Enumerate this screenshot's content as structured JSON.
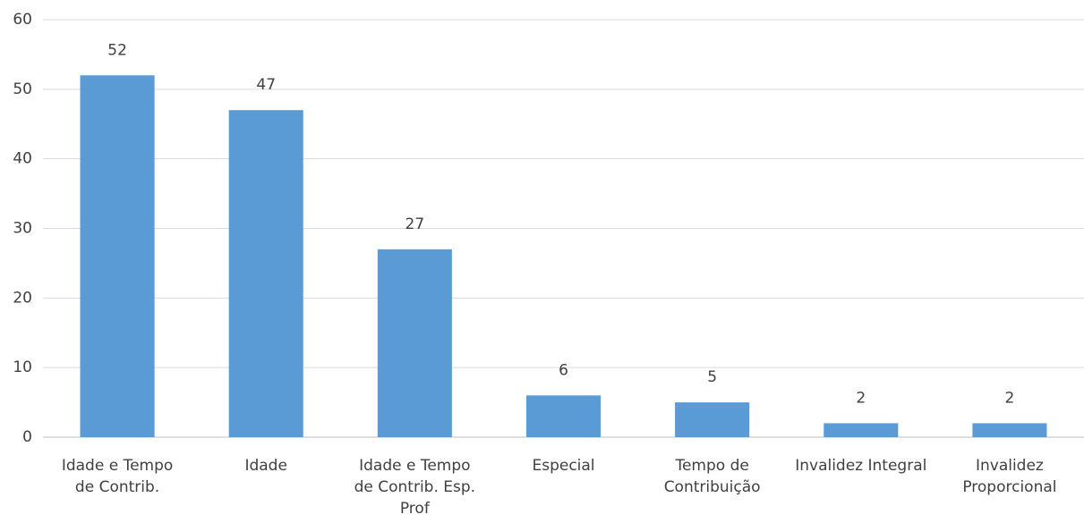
{
  "chart_data": {
    "type": "bar",
    "categories": [
      "Idade e Tempo de Contrib.",
      "Idade",
      "Idade e Tempo de Contrib. Esp. Prof",
      "Especial",
      "Tempo de Contribuição",
      "Invalidez Integral",
      "Invalidez Proporcional"
    ],
    "values": [
      52,
      47,
      27,
      6,
      5,
      2,
      2
    ],
    "color": "#5b9bd5",
    "ylim": [
      0,
      60
    ],
    "yticks": [
      0,
      10,
      20,
      30,
      40,
      50,
      60
    ],
    "grid": true
  }
}
